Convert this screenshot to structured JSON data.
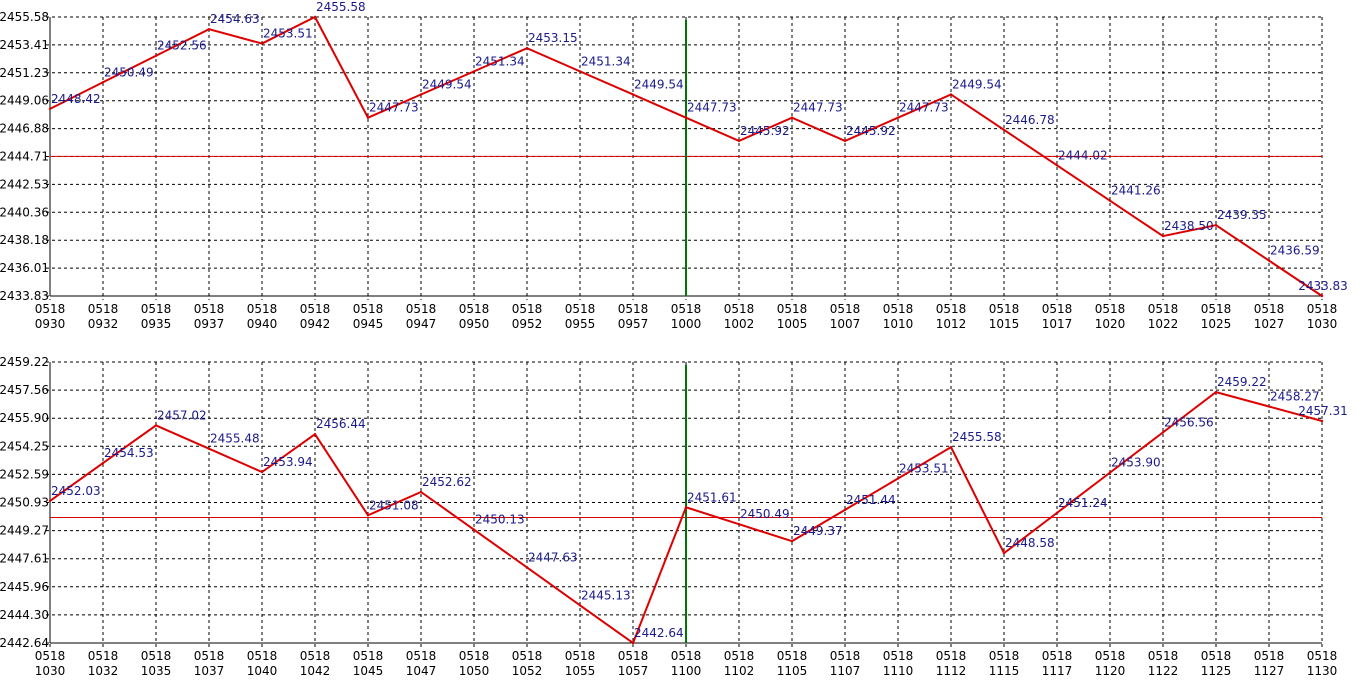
{
  "chart_data": [
    {
      "type": "line",
      "ylim": [
        2433.83,
        2455.58
      ],
      "yticks": [
        "2455.58",
        "2453.41",
        "2451.23",
        "2449.06",
        "2446.88",
        "2444.71",
        "2442.53",
        "2440.36",
        "2438.18",
        "2436.01",
        "2433.83"
      ],
      "x": [
        "0930",
        "0932",
        "0935",
        "0937",
        "0940",
        "0942",
        "0945",
        "0947",
        "0950",
        "0952",
        "0955",
        "0957",
        "1000",
        "1002",
        "1005",
        "1007",
        "1010",
        "1012",
        "1015",
        "1017",
        "1020",
        "1022",
        "1025",
        "1027",
        "1030"
      ],
      "xdate": "0518",
      "reference_line": 2444.71,
      "marker_x": "1000",
      "points": [
        {
          "x": "0930",
          "y": 2448.42,
          "label": "2448.42"
        },
        {
          "x": "0932",
          "y": 2450.49,
          "label": "2450.49"
        },
        {
          "x": "0935",
          "y": 2452.56,
          "label": "2452.56"
        },
        {
          "x": "0937",
          "y": 2454.63,
          "label": "2454.63"
        },
        {
          "x": "0940",
          "y": 2453.51,
          "label": "2453.51"
        },
        {
          "x": "0942",
          "y": 2455.58,
          "label": "2455.58"
        },
        {
          "x": "0945",
          "y": 2447.73,
          "label": "2447.73"
        },
        {
          "x": "0947",
          "y": 2449.54,
          "label": "2449.54"
        },
        {
          "x": "0950",
          "y": 2451.34,
          "label": "2451.34"
        },
        {
          "x": "0952",
          "y": 2453.15,
          "label": "2453.15"
        },
        {
          "x": "0955",
          "y": 2451.34,
          "label": "2451.34"
        },
        {
          "x": "0957",
          "y": 2449.54,
          "label": "2449.54"
        },
        {
          "x": "1000",
          "y": 2447.73,
          "label": "2447.73"
        },
        {
          "x": "1002",
          "y": 2445.92,
          "label": "2445.92"
        },
        {
          "x": "1005",
          "y": 2447.73,
          "label": "2447.73"
        },
        {
          "x": "1007",
          "y": 2445.92,
          "label": "2445.92"
        },
        {
          "x": "1010",
          "y": 2447.73,
          "label": "2447.73"
        },
        {
          "x": "1012",
          "y": 2449.54,
          "label": "2449.54"
        },
        {
          "x": "1015",
          "y": 2446.78,
          "label": "2446.78"
        },
        {
          "x": "1017",
          "y": 2444.02,
          "label": "2444.02"
        },
        {
          "x": "1020",
          "y": 2441.26,
          "label": "2441.26"
        },
        {
          "x": "1022",
          "y": 2438.5,
          "label": "2438.50"
        },
        {
          "x": "1025",
          "y": 2439.35,
          "label": "2439.35"
        },
        {
          "x": "1027",
          "y": 2436.59,
          "label": "2436.59"
        },
        {
          "x": "1030",
          "y": 2433.83,
          "label": "2433.83"
        }
      ]
    },
    {
      "type": "line",
      "ylim": [
        2442.64,
        2460.88
      ],
      "yticks": [
        "2459.22",
        "2457.56",
        "2455.90",
        "2454.25",
        "2452.59",
        "2450.93",
        "2449.27",
        "2447.61",
        "2445.96",
        "2444.30",
        "2442.64"
      ],
      "x": [
        "1030",
        "1032",
        "1035",
        "1037",
        "1040",
        "1042",
        "1045",
        "1047",
        "1050",
        "1052",
        "1055",
        "1057",
        "1100",
        "1102",
        "1105",
        "1107",
        "1110",
        "1112",
        "1115",
        "1117",
        "1120",
        "1122",
        "1125",
        "1127",
        "1130"
      ],
      "xdate": "0518",
      "reference_line": 2450.93,
      "marker_x": "1100",
      "points": [
        {
          "x": "1030",
          "y": 2452.03,
          "label": "2452.03"
        },
        {
          "x": "1032",
          "y": 2454.53,
          "label": "2454.53"
        },
        {
          "x": "1035",
          "y": 2457.02,
          "label": "2457.02"
        },
        {
          "x": "1037",
          "y": 2455.48,
          "label": "2455.48"
        },
        {
          "x": "1040",
          "y": 2453.94,
          "label": "2453.94"
        },
        {
          "x": "1042",
          "y": 2456.44,
          "label": "2456.44"
        },
        {
          "x": "1045",
          "y": 2451.08,
          "label": "2451.08"
        },
        {
          "x": "1047",
          "y": 2452.62,
          "label": "2452.62"
        },
        {
          "x": "1050",
          "y": 2450.13,
          "label": "2450.13"
        },
        {
          "x": "1052",
          "y": 2447.63,
          "label": "2447.63"
        },
        {
          "x": "1055",
          "y": 2445.13,
          "label": "2445.13"
        },
        {
          "x": "1057",
          "y": 2442.64,
          "label": "2442.64"
        },
        {
          "x": "1100",
          "y": 2451.61,
          "label": "2451.61"
        },
        {
          "x": "1102",
          "y": 2450.49,
          "label": "2450.49"
        },
        {
          "x": "1105",
          "y": 2449.37,
          "label": "2449.37"
        },
        {
          "x": "1107",
          "y": 2451.44,
          "label": "2451.44"
        },
        {
          "x": "1110",
          "y": 2453.51,
          "label": "2453.51"
        },
        {
          "x": "1112",
          "y": 2455.58,
          "label": "2455.58"
        },
        {
          "x": "1115",
          "y": 2448.58,
          "label": "2448.58"
        },
        {
          "x": "1117",
          "y": 2451.24,
          "label": "2451.24"
        },
        {
          "x": "1120",
          "y": 2453.9,
          "label": "2453.90"
        },
        {
          "x": "1122",
          "y": 2456.56,
          "label": "2456.56"
        },
        {
          "x": "1125",
          "y": 2459.22,
          "label": "2459.22"
        },
        {
          "x": "1127",
          "y": 2458.27,
          "label": "2458.27"
        },
        {
          "x": "1130",
          "y": 2457.31,
          "label": "2457.31"
        }
      ]
    }
  ],
  "colors": {
    "line": "#dd0000",
    "reference": "#dd0000",
    "marker": "#007700",
    "value_label": "#1a1a8c",
    "grid": "#000000",
    "axis_text": "#000000"
  }
}
